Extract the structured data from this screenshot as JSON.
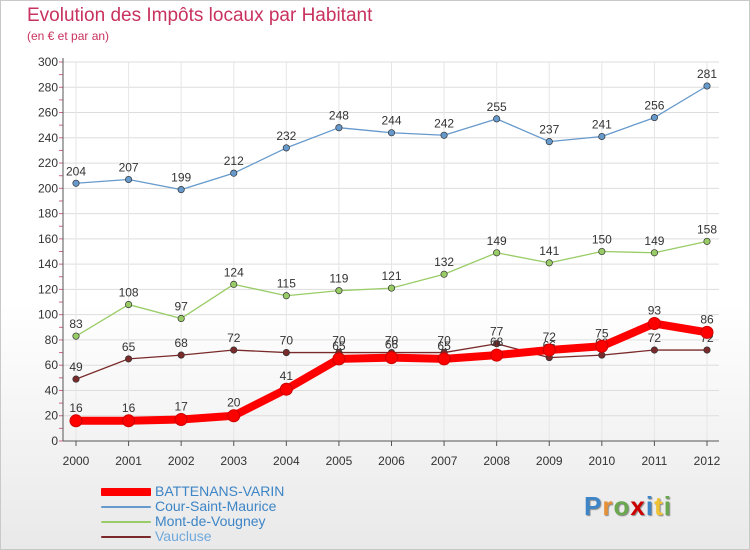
{
  "chart_data": {
    "type": "line",
    "title": "Evolution des Impôts locaux par Habitant",
    "subtitle": "(en € et par an)",
    "xlabel": "",
    "ylabel": "",
    "ylim": [
      0,
      300
    ],
    "yticks": [
      0,
      20,
      40,
      60,
      80,
      100,
      120,
      140,
      160,
      180,
      200,
      220,
      240,
      260,
      280,
      300
    ],
    "grid": true,
    "categories": [
      "2000",
      "2001",
      "2002",
      "2003",
      "2004",
      "2005",
      "2006",
      "2007",
      "2008",
      "2009",
      "2010",
      "2011",
      "2012"
    ],
    "series": [
      {
        "name": "BATTENANS-VARIN",
        "color": "#ff0000",
        "values": [
          16,
          16,
          17,
          20,
          41,
          65,
          66,
          65,
          68,
          72,
          75,
          93,
          86
        ],
        "labels": [
          "16",
          "16",
          "17",
          "20",
          "41",
          "65",
          "66",
          "65",
          "68",
          "72",
          "75",
          "93",
          "86"
        ]
      },
      {
        "name": "Cour-Saint-Maurice",
        "color": "#6699cc",
        "values": [
          204,
          207,
          199,
          212,
          232,
          248,
          244,
          242,
          255,
          237,
          241,
          256,
          281
        ],
        "labels": [
          "204",
          "207",
          "199",
          "212",
          "232",
          "248",
          "244",
          "242",
          "255",
          "237",
          "241",
          "256",
          "281"
        ]
      },
      {
        "name": "Mont-de-Vougney",
        "color": "#99cc66",
        "values": [
          83,
          108,
          97,
          124,
          115,
          119,
          121,
          132,
          149,
          141,
          150,
          149,
          158
        ],
        "labels": [
          "83",
          "108",
          "97",
          "124",
          "115",
          "119",
          "121",
          "132",
          "149",
          "141",
          "150",
          "149",
          "158"
        ]
      },
      {
        "name": "Vaucluse",
        "color": "#7a2a2a",
        "values": [
          49,
          65,
          68,
          72,
          70,
          70,
          70,
          70,
          77,
          66,
          68,
          72,
          72
        ],
        "labels": [
          "49",
          "65",
          "68",
          "72",
          "70",
          "70",
          "70",
          "70",
          "77",
          "66",
          "68",
          "72",
          "72"
        ]
      }
    ],
    "legend_position": "bottom-left"
  },
  "logo": {
    "letters": [
      "P",
      "r",
      "o",
      "x",
      "i",
      "t",
      "i"
    ],
    "colors": [
      "#3d85c6",
      "#e69138",
      "#6aa84f",
      "#cc0000",
      "#3d85c6",
      "#f1c232",
      "#6aa84f"
    ]
  }
}
